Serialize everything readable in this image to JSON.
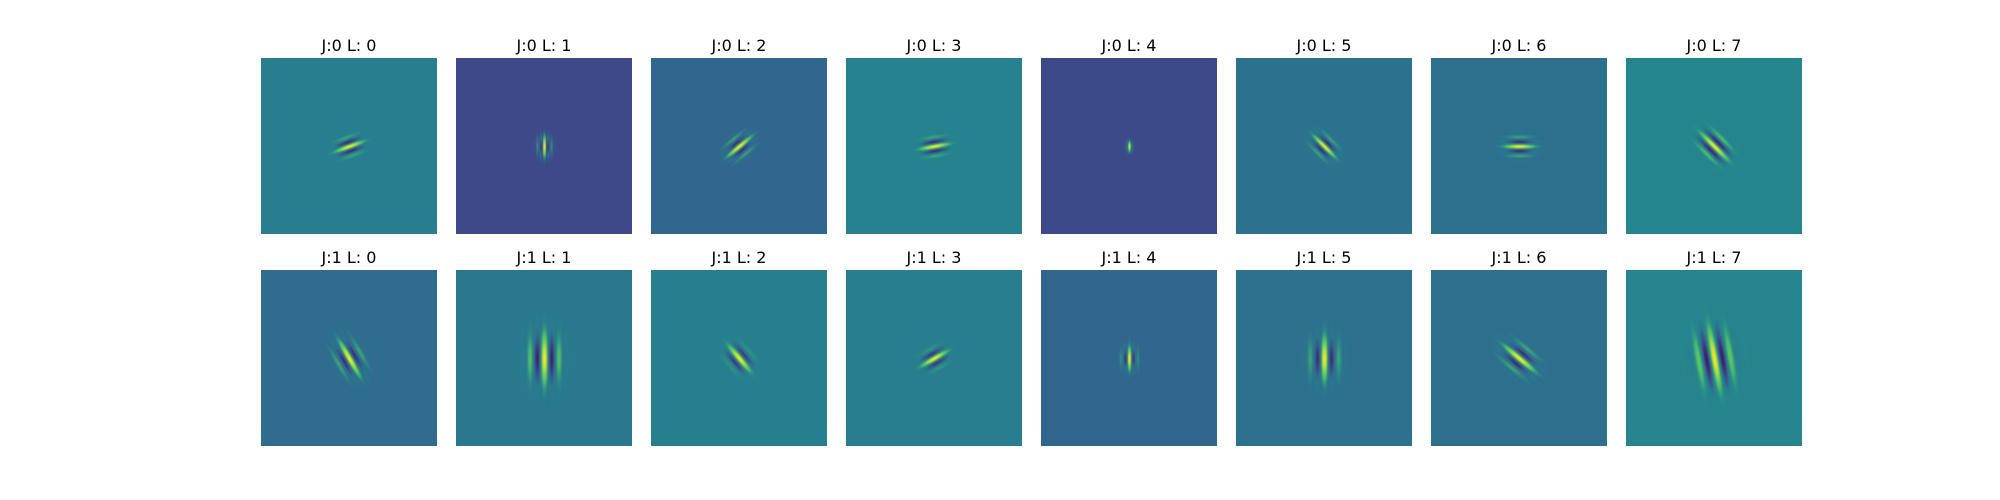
{
  "figure": {
    "rows": [
      {
        "panels": [
          {
            "title": "J:0 L: 0",
            "background": "#287e8e",
            "angle_deg": 70,
            "scale": 1.0,
            "freq": 0.9,
            "amp": 1.0
          },
          {
            "title": "J:0 L: 1",
            "background": "#3e4989",
            "angle_deg": 0,
            "scale": 0.7,
            "freq": 1.2,
            "amp": 1.0
          },
          {
            "title": "J:0 L: 2",
            "background": "#31668e",
            "angle_deg": 50,
            "scale": 1.0,
            "freq": 0.9,
            "amp": 1.0
          },
          {
            "title": "J:0 L: 3",
            "background": "#26828e",
            "angle_deg": 80,
            "scale": 1.0,
            "freq": 0.9,
            "amp": 1.0
          },
          {
            "title": "J:0 L: 4",
            "background": "#3d4a8a",
            "angle_deg": 0,
            "scale": 0.35,
            "freq": 1.5,
            "amp": 1.0
          },
          {
            "title": "J:0 L: 5",
            "background": "#2c728e",
            "angle_deg": 135,
            "scale": 1.0,
            "freq": 0.9,
            "amp": 1.0
          },
          {
            "title": "J:0 L: 6",
            "background": "#2d708e",
            "angle_deg": 90,
            "scale": 1.0,
            "freq": 0.9,
            "amp": 1.0
          },
          {
            "title": "J:0 L: 7",
            "background": "#25858e",
            "angle_deg": 135,
            "scale": 1.3,
            "freq": 0.8,
            "amp": 1.0
          }
        ]
      },
      {
        "panels": [
          {
            "title": "J:1 L: 0",
            "background": "#2f6c8e",
            "angle_deg": 150,
            "scale": 1.3,
            "freq": 0.7,
            "amp": 1.0
          },
          {
            "title": "J:1 L: 1",
            "background": "#2a788e",
            "angle_deg": 0,
            "scale": 1.8,
            "freq": 0.6,
            "amp": 1.0
          },
          {
            "title": "J:1 L: 2",
            "background": "#277f8e",
            "angle_deg": 140,
            "scale": 1.1,
            "freq": 0.7,
            "amp": 1.0
          },
          {
            "title": "J:1 L: 3",
            "background": "#287d8e",
            "angle_deg": 60,
            "scale": 1.0,
            "freq": 0.8,
            "amp": 1.0
          },
          {
            "title": "J:1 L: 4",
            "background": "#31668e",
            "angle_deg": 0,
            "scale": 0.8,
            "freq": 1.0,
            "amp": 1.0
          },
          {
            "title": "J:1 L: 5",
            "background": "#2d718e",
            "angle_deg": 0,
            "scale": 1.5,
            "freq": 0.6,
            "amp": 1.0
          },
          {
            "title": "J:1 L: 6",
            "background": "#2e6f8e",
            "angle_deg": 130,
            "scale": 1.3,
            "freq": 0.7,
            "amp": 1.0
          },
          {
            "title": "J:1 L: 7",
            "background": "#25848e",
            "angle_deg": 170,
            "scale": 2.2,
            "freq": 0.55,
            "amp": 1.0
          }
        ]
      }
    ]
  }
}
